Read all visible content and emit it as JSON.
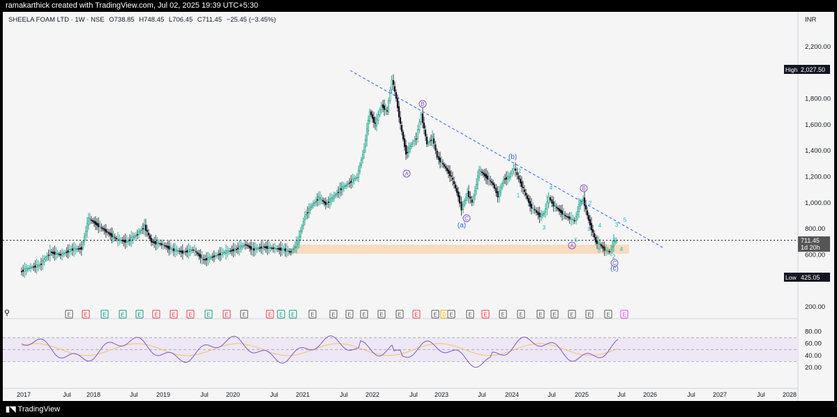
{
  "header": {
    "attribution": "ramakarthick created with TradingView.com, Jul 02, 2025 19:39 UTC+5:30"
  },
  "symbol": {
    "name": "SHEELA FOAM LTD · 1W · NSE",
    "open": "O738.85",
    "high": "H748.45",
    "low": "L706.45",
    "close": "C711.45",
    "change": "−25.45 (−3.45%)"
  },
  "currency": "INR",
  "price_axis": [
    "2,200.00",
    "1,800.00",
    "1,600.00",
    "1,400.00",
    "1,200.00",
    "1,000.00",
    "800.00",
    "600.00",
    "200.00"
  ],
  "high_tag": {
    "label": "High",
    "value": "2,027.50"
  },
  "low_tag": {
    "label": "Low",
    "value": "425.05"
  },
  "last_tag": {
    "value": "711.45",
    "countdown": "1d 20h"
  },
  "rsi_axis": [
    "80.00",
    "60.00",
    "40.00",
    "20.00"
  ],
  "time_axis": [
    "2017",
    "Jul",
    "2018",
    "Jul",
    "2019",
    "Jul",
    "2020",
    "Jul",
    "2021",
    "Jul",
    "2022",
    "Jul",
    "2023",
    "Jul",
    "2024",
    "Jul",
    "2025",
    "Jul",
    "2026",
    "Jul",
    "2027",
    "Jul",
    "2028"
  ],
  "wave_labels": {
    "A1": "A",
    "B1": "B",
    "C1": "C",
    "a": "(a)",
    "b": "(b)",
    "c": "(c)",
    "A2": "A",
    "B2": "B",
    "C2": "C",
    "n1": "1",
    "n2": "2",
    "n3": "3",
    "n4": "4",
    "n5": "5"
  },
  "earnings_label": "E",
  "dividend_label": "D",
  "footer": {
    "brand": "TradingView"
  },
  "colors": {
    "up": "#089981",
    "down": "#131722",
    "trend": "#2962ff",
    "rsi": "#7e57c2",
    "rsi_ma": "#f7c35a",
    "zone": "#f7dcc0",
    "earnings_red": "#f23645",
    "earnings_green": "#089981",
    "wave_purple": "#7e57c2",
    "wave_cyan": "#00bcd4"
  }
}
